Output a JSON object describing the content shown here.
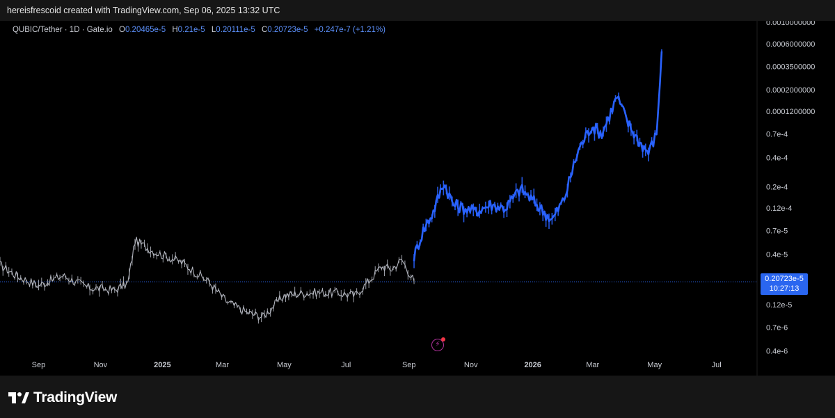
{
  "header": {
    "caption": "hereisfrescoid created with TradingView.com, Sep 06, 2025 13:32 UTC"
  },
  "legend": {
    "symbol": "QUBIC/Tether · 1D · Gate.io",
    "open_label": "O",
    "open": "0.20465e-5",
    "high_label": "H",
    "high": "0.21e-5",
    "low_label": "L",
    "low": "0.20111e-5",
    "close_label": "C",
    "close": "0.20723e-5",
    "change": "+0.247e-7 (+1.21%)"
  },
  "price_tag": {
    "price": "0.20723e-5",
    "countdown": "10:27:13"
  },
  "event_icon": "lightning-event-icon",
  "brand": {
    "name": "TradingView"
  },
  "colors": {
    "historical": "#b2b5be",
    "projection": "#2962ff",
    "accent": "#2a66f0",
    "background": "#000000"
  },
  "chart_data": {
    "type": "line",
    "scale": "log",
    "x_ticks": [
      "Sep",
      "Nov",
      "2025",
      "Mar",
      "May",
      "Jul",
      "Sep",
      "Nov",
      "2026",
      "Mar",
      "May",
      "Jul"
    ],
    "y_ticks": [
      "0.0010000000",
      "0.0006000000",
      "0.0003500000",
      "0.0002000000",
      "0.0001200000",
      "0.7e-4",
      "0.4e-4",
      "0.2e-4",
      "0.12e-4",
      "0.7e-5",
      "0.4e-5",
      "0.12e-5",
      "0.7e-6",
      "0.4e-6"
    ],
    "y_tick_values": [
      0.001,
      0.0006,
      0.00035,
      0.0002,
      0.00012,
      7e-05,
      4e-05,
      2e-05,
      1.2e-05,
      7e-06,
      4e-06,
      1.2e-06,
      7e-07,
      4e-07
    ],
    "x_range": [
      "2024-07-25",
      "2026-08-10"
    ],
    "last_price": 2.0723e-06,
    "series": [
      {
        "x": [
          "2024-07-25",
          "2024-08-10",
          "2024-09-01",
          "2024-09-25",
          "2024-10-20",
          "2024-11-15",
          "2024-11-28",
          "2024-12-05",
          "2024-12-25",
          "2025-01-20",
          "2025-02-15",
          "2025-03-05",
          "2025-03-25",
          "2025-04-10",
          "2025-05-01",
          "2025-05-25",
          "2025-06-20",
          "2025-07-10",
          "2025-07-25",
          "2025-08-05",
          "2025-08-15",
          "2025-08-25",
          "2025-09-06"
        ],
        "values": [
          3.1e-06,
          2.4e-06,
          1.9e-06,
          2.4e-06,
          1.8e-06,
          1.7e-06,
          2e-06,
          5.5e-06,
          4.2e-06,
          3.3e-06,
          2.1e-06,
          1.3e-06,
          1e-06,
          9e-07,
          1.5e-06,
          1.6e-06,
          1.6e-06,
          1.5e-06,
          2.2e-06,
          3e-06,
          2.8e-06,
          3.5e-06,
          2.1e-06
        ]
      },
      {
        "x": [
          "2025-09-06",
          "2025-09-15",
          "2025-09-25",
          "2025-10-05",
          "2025-10-15",
          "2025-10-25",
          "2025-11-05",
          "2025-11-20",
          "2025-12-05",
          "2025-12-20",
          "2026-01-05",
          "2026-01-20",
          "2026-02-01",
          "2026-02-15",
          "2026-02-28",
          "2026-03-10",
          "2026-03-25",
          "2026-04-05",
          "2026-04-15",
          "2026-04-25",
          "2026-05-03",
          "2026-05-08"
        ],
        "values": [
          3.8e-06,
          7e-06,
          1.1e-05,
          2.2e-05,
          1.3e-05,
          1.2e-05,
          1.1e-05,
          1.3e-05,
          1.2e-05,
          1.9e-05,
          1.3e-05,
          9e-06,
          1.5e-05,
          4.8e-05,
          8.5e-05,
          7e-05,
          0.00017,
          9e-05,
          6e-05,
          4.5e-05,
          7e-05,
          0.0005
        ]
      }
    ]
  }
}
